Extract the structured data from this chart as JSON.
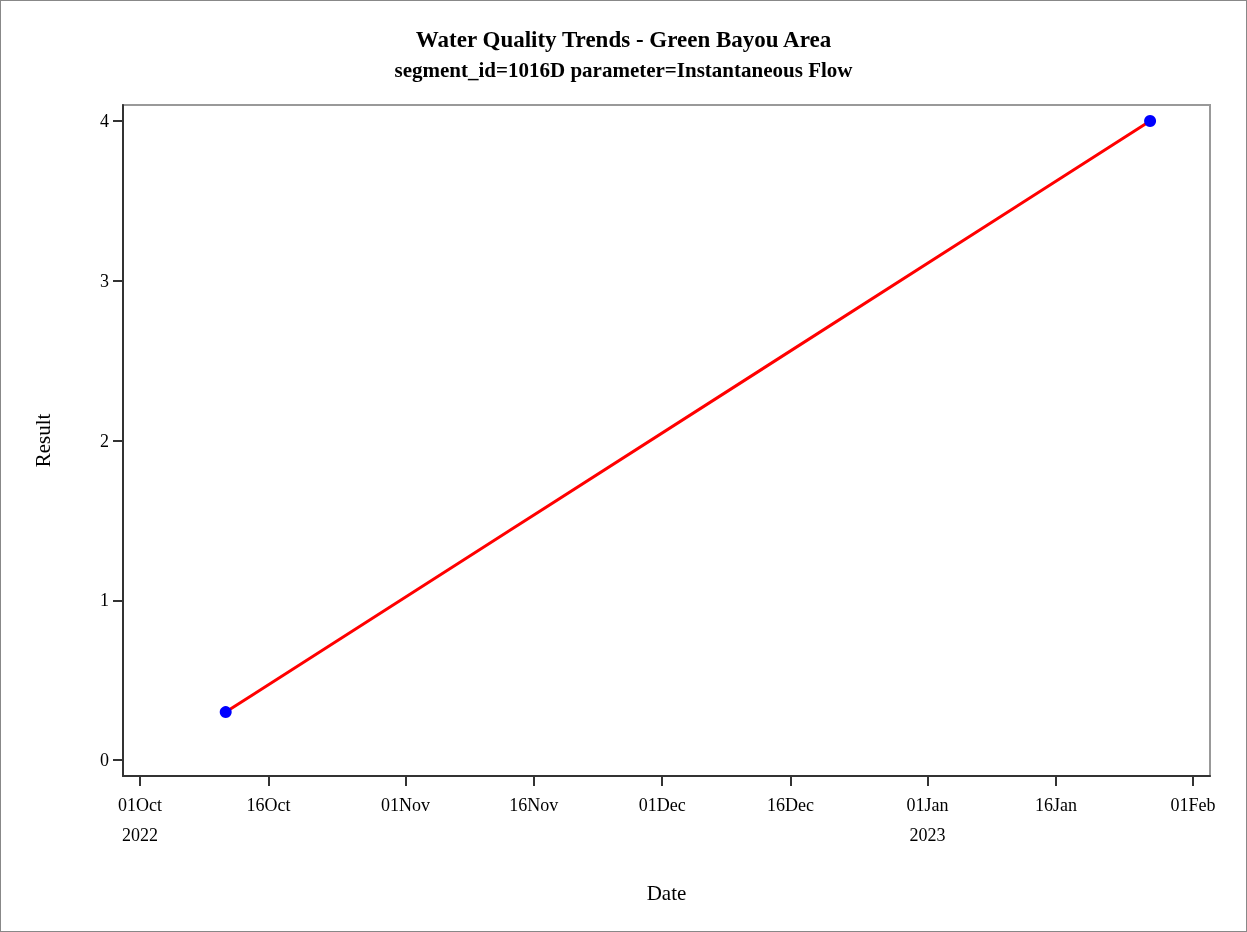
{
  "chart_data": {
    "type": "line",
    "title": "Water Quality Trends - Green Bayou Area",
    "subtitle": "segment_id=1016D parameter=Instantaneous Flow",
    "xlabel": "Date",
    "ylabel": "Result",
    "series": [
      {
        "color": "#ff0000",
        "marker": "none",
        "x": [
          "2022-10-11",
          "2023-01-27"
        ],
        "values": [
          0.3,
          4.0
        ]
      },
      {
        "type": "scatter",
        "color": "#0000ff",
        "marker": "circle",
        "x": [
          "2022-10-11",
          "2023-01-27"
        ],
        "values": [
          0.3,
          4.0
        ]
      }
    ],
    "xlim": [
      "2022-09-29",
      "2023-02-03"
    ],
    "xticks": [
      {
        "value": "2022-10-01",
        "label": "01Oct\n2022"
      },
      {
        "value": "2022-10-16",
        "label": "16Oct"
      },
      {
        "value": "2022-11-01",
        "label": "01Nov"
      },
      {
        "value": "2022-11-16",
        "label": "16Nov"
      },
      {
        "value": "2022-12-01",
        "label": "01Dec"
      },
      {
        "value": "2022-12-16",
        "label": "16Dec"
      },
      {
        "value": "2023-01-01",
        "label": "01Jan\n2023"
      },
      {
        "value": "2023-01-16",
        "label": "16Jan"
      },
      {
        "value": "2023-02-01",
        "label": "01Feb"
      }
    ],
    "ylim": [
      -0.1,
      4.1
    ],
    "yticks": [
      0,
      1,
      2,
      3,
      4
    ],
    "grid": false,
    "line_style": "solid"
  }
}
